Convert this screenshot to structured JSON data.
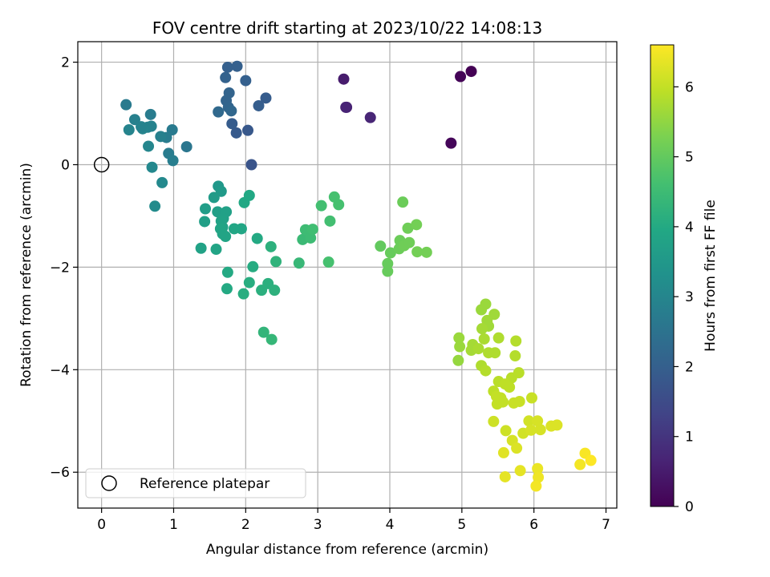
{
  "chart_data": {
    "type": "scatter",
    "title": "FOV centre drift starting at 2023/10/22 14:08:13",
    "xlabel": "Angular distance from reference (arcmin)",
    "ylabel": "Rotation from reference (arcmin)",
    "xlim": [
      -0.33,
      7.15
    ],
    "ylim": [
      -6.7,
      2.4
    ],
    "xticks": [
      0,
      1,
      2,
      3,
      4,
      5,
      6,
      7
    ],
    "yticks": [
      -6,
      -4,
      -2,
      0,
      2
    ],
    "grid": true,
    "colormap": "viridis",
    "colorbar": {
      "label": "Hours from first FF file",
      "range": [
        0,
        6.6
      ],
      "ticks": [
        0,
        1,
        2,
        3,
        4,
        5,
        6
      ]
    },
    "legend": {
      "placement": "lower-left",
      "entries": [
        "Reference platepar"
      ]
    },
    "reference_point": {
      "x": 0,
      "y": 0,
      "label": "Reference platepar"
    },
    "points": [
      {
        "x": 5.13,
        "y": 1.82,
        "t": 0.0
      },
      {
        "x": 4.98,
        "y": 1.72,
        "t": 0.05
      },
      {
        "x": 4.85,
        "y": 0.42,
        "t": 0.1
      },
      {
        "x": 3.36,
        "y": 1.67,
        "t": 0.5
      },
      {
        "x": 3.4,
        "y": 1.12,
        "t": 0.6
      },
      {
        "x": 3.39,
        "y": 1.12,
        "t": 0.65
      },
      {
        "x": 3.73,
        "y": 0.92,
        "t": 0.7
      },
      {
        "x": 2.08,
        "y": 0.0,
        "t": 1.7
      },
      {
        "x": 2.03,
        "y": 0.67,
        "t": 1.8
      },
      {
        "x": 1.87,
        "y": 0.62,
        "t": 1.85
      },
      {
        "x": 1.81,
        "y": 0.8,
        "t": 1.9
      },
      {
        "x": 2.18,
        "y": 1.15,
        "t": 1.95
      },
      {
        "x": 2.28,
        "y": 1.3,
        "t": 1.9
      },
      {
        "x": 2.0,
        "y": 1.64,
        "t": 2.0
      },
      {
        "x": 1.75,
        "y": 1.9,
        "t": 2.0
      },
      {
        "x": 1.88,
        "y": 1.92,
        "t": 2.0
      },
      {
        "x": 1.72,
        "y": 1.7,
        "t": 2.05
      },
      {
        "x": 1.77,
        "y": 1.4,
        "t": 2.1
      },
      {
        "x": 1.73,
        "y": 1.25,
        "t": 2.1
      },
      {
        "x": 1.76,
        "y": 1.12,
        "t": 2.15
      },
      {
        "x": 1.8,
        "y": 1.05,
        "t": 2.2
      },
      {
        "x": 1.62,
        "y": 1.03,
        "t": 2.25
      },
      {
        "x": 1.18,
        "y": 0.35,
        "t": 2.6
      },
      {
        "x": 0.98,
        "y": 0.68,
        "t": 2.7
      },
      {
        "x": 0.9,
        "y": 0.53,
        "t": 2.75
      },
      {
        "x": 0.93,
        "y": 0.22,
        "t": 2.75
      },
      {
        "x": 0.99,
        "y": 0.08,
        "t": 2.8
      },
      {
        "x": 0.82,
        "y": 0.55,
        "t": 2.85
      },
      {
        "x": 0.68,
        "y": 0.98,
        "t": 2.75
      },
      {
        "x": 0.69,
        "y": 0.75,
        "t": 2.9
      },
      {
        "x": 0.64,
        "y": 0.73,
        "t": 2.9
      },
      {
        "x": 0.57,
        "y": 0.7,
        "t": 2.95
      },
      {
        "x": 0.55,
        "y": 0.74,
        "t": 2.9
      },
      {
        "x": 0.46,
        "y": 0.88,
        "t": 2.85
      },
      {
        "x": 0.34,
        "y": 1.17,
        "t": 2.7
      },
      {
        "x": 0.38,
        "y": 0.68,
        "t": 2.95
      },
      {
        "x": 0.65,
        "y": 0.36,
        "t": 3.0
      },
      {
        "x": 0.7,
        "y": -0.05,
        "t": 3.05
      },
      {
        "x": 0.84,
        "y": -0.35,
        "t": 3.1
      },
      {
        "x": 0.74,
        "y": -0.81,
        "t": 3.15
      },
      {
        "x": 1.62,
        "y": -0.42,
        "t": 3.5
      },
      {
        "x": 1.66,
        "y": -0.52,
        "t": 3.55
      },
      {
        "x": 1.56,
        "y": -0.64,
        "t": 3.6
      },
      {
        "x": 1.44,
        "y": -0.86,
        "t": 3.65
      },
      {
        "x": 1.43,
        "y": -1.11,
        "t": 3.7
      },
      {
        "x": 1.61,
        "y": -0.92,
        "t": 3.7
      },
      {
        "x": 1.73,
        "y": -0.92,
        "t": 3.75
      },
      {
        "x": 1.69,
        "y": -1.05,
        "t": 3.75
      },
      {
        "x": 1.66,
        "y": -1.1,
        "t": 3.8
      },
      {
        "x": 1.68,
        "y": -1.22,
        "t": 3.8
      },
      {
        "x": 1.65,
        "y": -1.25,
        "t": 3.85
      },
      {
        "x": 1.68,
        "y": -1.35,
        "t": 3.85
      },
      {
        "x": 1.72,
        "y": -1.4,
        "t": 3.85
      },
      {
        "x": 1.84,
        "y": -1.25,
        "t": 3.9
      },
      {
        "x": 1.94,
        "y": -1.25,
        "t": 3.9
      },
      {
        "x": 1.98,
        "y": -0.74,
        "t": 3.95
      },
      {
        "x": 2.05,
        "y": -0.6,
        "t": 3.95
      },
      {
        "x": 1.38,
        "y": -1.63,
        "t": 3.8
      },
      {
        "x": 1.59,
        "y": -1.65,
        "t": 3.85
      },
      {
        "x": 2.16,
        "y": -1.44,
        "t": 4.0
      },
      {
        "x": 1.75,
        "y": -2.1,
        "t": 4.0
      },
      {
        "x": 1.74,
        "y": -2.42,
        "t": 4.0
      },
      {
        "x": 2.1,
        "y": -1.99,
        "t": 4.05
      },
      {
        "x": 2.05,
        "y": -2.3,
        "t": 4.1
      },
      {
        "x": 1.97,
        "y": -2.52,
        "t": 4.1
      },
      {
        "x": 2.22,
        "y": -2.45,
        "t": 4.15
      },
      {
        "x": 2.31,
        "y": -2.32,
        "t": 4.15
      },
      {
        "x": 2.4,
        "y": -2.45,
        "t": 4.2
      },
      {
        "x": 2.35,
        "y": -1.6,
        "t": 4.2
      },
      {
        "x": 2.42,
        "y": -1.89,
        "t": 4.25
      },
      {
        "x": 2.25,
        "y": -3.27,
        "t": 4.3
      },
      {
        "x": 2.36,
        "y": -3.41,
        "t": 4.35
      },
      {
        "x": 2.74,
        "y": -1.92,
        "t": 4.4
      },
      {
        "x": 2.79,
        "y": -1.46,
        "t": 4.45
      },
      {
        "x": 2.83,
        "y": -1.27,
        "t": 4.5
      },
      {
        "x": 2.9,
        "y": -1.43,
        "t": 4.5
      },
      {
        "x": 2.93,
        "y": -1.26,
        "t": 4.55
      },
      {
        "x": 3.05,
        "y": -0.8,
        "t": 4.6
      },
      {
        "x": 3.17,
        "y": -1.1,
        "t": 4.6
      },
      {
        "x": 3.23,
        "y": -0.63,
        "t": 4.65
      },
      {
        "x": 3.29,
        "y": -0.78,
        "t": 4.65
      },
      {
        "x": 3.15,
        "y": -1.9,
        "t": 4.65
      },
      {
        "x": 3.87,
        "y": -1.59,
        "t": 5.0
      },
      {
        "x": 3.97,
        "y": -1.93,
        "t": 5.05
      },
      {
        "x": 3.97,
        "y": -2.08,
        "t": 5.05
      },
      {
        "x": 4.01,
        "y": -1.72,
        "t": 5.05
      },
      {
        "x": 4.14,
        "y": -1.48,
        "t": 5.1
      },
      {
        "x": 4.13,
        "y": -1.64,
        "t": 5.1
      },
      {
        "x": 4.18,
        "y": -0.73,
        "t": 5.1
      },
      {
        "x": 4.25,
        "y": -1.24,
        "t": 5.15
      },
      {
        "x": 4.2,
        "y": -1.58,
        "t": 5.15
      },
      {
        "x": 4.27,
        "y": -1.52,
        "t": 5.15
      },
      {
        "x": 4.37,
        "y": -1.17,
        "t": 5.2
      },
      {
        "x": 4.38,
        "y": -1.7,
        "t": 5.2
      },
      {
        "x": 4.51,
        "y": -1.71,
        "t": 5.2
      },
      {
        "x": 5.33,
        "y": -2.72,
        "t": 5.6
      },
      {
        "x": 5.27,
        "y": -2.83,
        "t": 5.6
      },
      {
        "x": 5.45,
        "y": -2.92,
        "t": 5.65
      },
      {
        "x": 5.35,
        "y": -3.04,
        "t": 5.65
      },
      {
        "x": 5.37,
        "y": -3.15,
        "t": 5.65
      },
      {
        "x": 5.28,
        "y": -3.2,
        "t": 5.7
      },
      {
        "x": 4.96,
        "y": -3.38,
        "t": 5.6
      },
      {
        "x": 4.97,
        "y": -3.55,
        "t": 5.6
      },
      {
        "x": 4.95,
        "y": -3.82,
        "t": 5.55
      },
      {
        "x": 5.15,
        "y": -3.51,
        "t": 5.7
      },
      {
        "x": 5.13,
        "y": -3.62,
        "t": 5.7
      },
      {
        "x": 5.23,
        "y": -3.59,
        "t": 5.75
      },
      {
        "x": 5.31,
        "y": -3.4,
        "t": 5.75
      },
      {
        "x": 5.51,
        "y": -3.38,
        "t": 5.8
      },
      {
        "x": 5.46,
        "y": -3.67,
        "t": 5.8
      },
      {
        "x": 5.37,
        "y": -3.67,
        "t": 5.8
      },
      {
        "x": 5.27,
        "y": -3.92,
        "t": 5.8
      },
      {
        "x": 5.33,
        "y": -4.02,
        "t": 5.85
      },
      {
        "x": 5.75,
        "y": -3.44,
        "t": 5.85
      },
      {
        "x": 5.74,
        "y": -3.73,
        "t": 5.85
      },
      {
        "x": 5.69,
        "y": -4.16,
        "t": 5.9
      },
      {
        "x": 5.79,
        "y": -4.06,
        "t": 5.9
      },
      {
        "x": 5.51,
        "y": -4.23,
        "t": 5.9
      },
      {
        "x": 5.6,
        "y": -4.28,
        "t": 5.95
      },
      {
        "x": 5.66,
        "y": -4.34,
        "t": 5.95
      },
      {
        "x": 5.44,
        "y": -4.42,
        "t": 5.95
      },
      {
        "x": 5.48,
        "y": -4.52,
        "t": 6.0
      },
      {
        "x": 5.54,
        "y": -4.55,
        "t": 6.0
      },
      {
        "x": 5.57,
        "y": -4.63,
        "t": 6.0
      },
      {
        "x": 5.49,
        "y": -4.67,
        "t": 6.0
      },
      {
        "x": 5.72,
        "y": -4.65,
        "t": 6.05
      },
      {
        "x": 5.8,
        "y": -4.62,
        "t": 6.05
      },
      {
        "x": 5.97,
        "y": -4.55,
        "t": 6.05
      },
      {
        "x": 5.44,
        "y": -5.01,
        "t": 6.1
      },
      {
        "x": 5.61,
        "y": -5.19,
        "t": 6.1
      },
      {
        "x": 5.85,
        "y": -5.24,
        "t": 6.15
      },
      {
        "x": 5.93,
        "y": -5.0,
        "t": 6.15
      },
      {
        "x": 6.05,
        "y": -5.0,
        "t": 6.2
      },
      {
        "x": 5.96,
        "y": -5.18,
        "t": 6.2
      },
      {
        "x": 6.09,
        "y": -5.17,
        "t": 6.2
      },
      {
        "x": 6.24,
        "y": -5.1,
        "t": 6.25
      },
      {
        "x": 6.32,
        "y": -5.08,
        "t": 6.25
      },
      {
        "x": 5.7,
        "y": -5.38,
        "t": 6.2
      },
      {
        "x": 5.76,
        "y": -5.53,
        "t": 6.25
      },
      {
        "x": 5.58,
        "y": -5.62,
        "t": 6.3
      },
      {
        "x": 5.6,
        "y": -6.09,
        "t": 6.35
      },
      {
        "x": 5.81,
        "y": -5.97,
        "t": 6.35
      },
      {
        "x": 6.05,
        "y": -5.93,
        "t": 6.4
      },
      {
        "x": 6.06,
        "y": -6.1,
        "t": 6.45
      },
      {
        "x": 6.03,
        "y": -6.27,
        "t": 6.5
      },
      {
        "x": 6.64,
        "y": -5.85,
        "t": 6.5
      },
      {
        "x": 6.71,
        "y": -5.63,
        "t": 6.55
      },
      {
        "x": 6.79,
        "y": -5.77,
        "t": 6.6
      }
    ]
  }
}
